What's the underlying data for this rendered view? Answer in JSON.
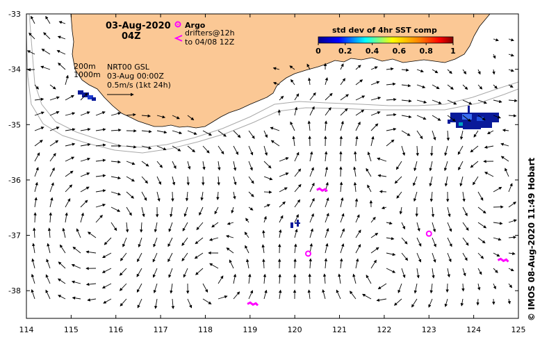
{
  "header": {
    "date": "03-Aug-2020",
    "time": "04Z"
  },
  "legend": {
    "argo_label": "Argo",
    "drifters_label": "drifters@12h",
    "drifters_to": "to 04/08 12Z",
    "depth_200": "200m",
    "depth_1000": "1000m",
    "gsl_label": "NRT00 GSL",
    "gsl_time": "03-Aug 00:00Z",
    "speed_scale": "0.5m/s (1kt 24h)",
    "argo_color": "#ff00ff",
    "land_color": "#fbc895"
  },
  "colorbar": {
    "title": "std dev of 4hr SST comp",
    "ticks": [
      "0",
      "0.2",
      "0.4",
      "0.6",
      "0.8",
      "1"
    ]
  },
  "axes": {
    "x_ticks": [
      "114",
      "115",
      "116",
      "117",
      "118",
      "119",
      "120",
      "121",
      "122",
      "123",
      "124",
      "125"
    ],
    "y_ticks": [
      "-33",
      "-34",
      "-35",
      "-36",
      "-37",
      "-38"
    ]
  },
  "copyright": "© IMOS 08-Aug-2020 11:49 Hobart",
  "argo_floats": [
    {
      "lon": 120.3,
      "lat": -37.33
    },
    {
      "lon": 123.0,
      "lat": -36.97
    }
  ],
  "drifters": [
    {
      "lon": 120.6,
      "lat": -36.18
    },
    {
      "lon": 119.05,
      "lat": -38.24
    },
    {
      "lon": 124.65,
      "lat": -37.45
    }
  ]
}
